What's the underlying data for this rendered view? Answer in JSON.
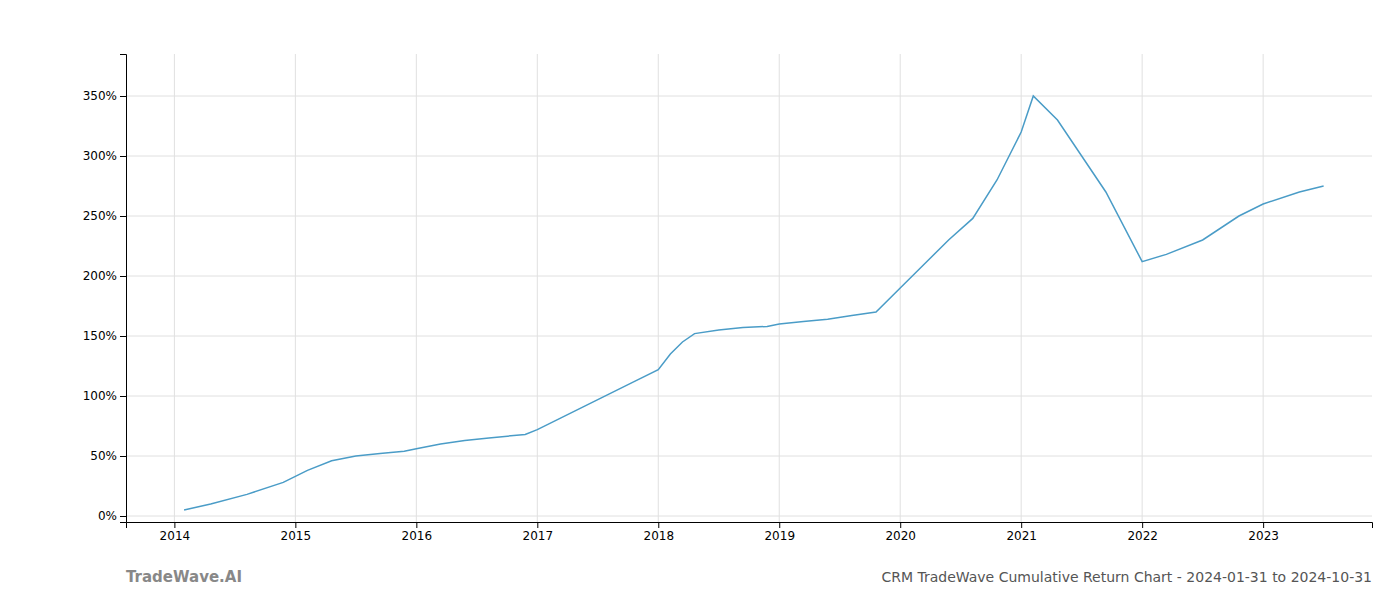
{
  "chart_data": {
    "type": "line",
    "title": "CRM TradeWave Cumulative Return Chart - 2024-01-31 to 2024-10-31",
    "annotations": [
      "TradeWave.AI"
    ],
    "x": [
      2014.08,
      2014.3,
      2014.6,
      2014.9,
      2015.0,
      2015.1,
      2015.3,
      2015.5,
      2015.7,
      2015.9,
      2016.0,
      2016.2,
      2016.4,
      2016.6,
      2016.9,
      2017.0,
      2017.2,
      2017.4,
      2017.6,
      2017.8,
      2018.0,
      2018.1,
      2018.2,
      2018.3,
      2018.5,
      2018.7,
      2018.9,
      2019.0,
      2019.2,
      2019.4,
      2019.6,
      2019.8,
      2020.0,
      2020.2,
      2020.4,
      2020.6,
      2020.8,
      2021.0,
      2021.1,
      2021.3,
      2021.5,
      2021.7,
      2022.0,
      2022.2,
      2022.5,
      2022.8,
      2023.0,
      2023.3,
      2023.5
    ],
    "values": [
      0.05,
      0.1,
      0.18,
      0.28,
      0.33,
      0.38,
      0.46,
      0.5,
      0.52,
      0.54,
      0.56,
      0.6,
      0.63,
      0.65,
      0.68,
      0.72,
      0.82,
      0.92,
      1.02,
      1.12,
      1.22,
      1.35,
      1.45,
      1.52,
      1.55,
      1.57,
      1.58,
      1.6,
      1.62,
      1.64,
      1.67,
      1.7,
      1.9,
      2.1,
      2.3,
      2.48,
      2.8,
      3.2,
      3.5,
      3.3,
      3.0,
      2.7,
      2.12,
      2.18,
      2.3,
      2.5,
      2.6,
      2.7,
      2.75
    ],
    "color": "#4a9cc7",
    "xlim": [
      2013.6,
      2023.9
    ],
    "xticks": [
      2014,
      2015,
      2016,
      2017,
      2018,
      2019,
      2020,
      2021,
      2022,
      2023
    ],
    "ylim": [
      -0.05,
      3.85
    ],
    "yticks": [
      {
        "value": 0.0,
        "label": "0%"
      },
      {
        "value": 0.5,
        "label": "50%"
      },
      {
        "value": 1.0,
        "label": "100%"
      },
      {
        "value": 1.5,
        "label": "150%"
      },
      {
        "value": 2.0,
        "label": "200%"
      },
      {
        "value": 2.5,
        "label": "250%"
      },
      {
        "value": 3.0,
        "label": "300%"
      },
      {
        "value": 3.5,
        "label": "350%"
      }
    ],
    "grid": true
  }
}
